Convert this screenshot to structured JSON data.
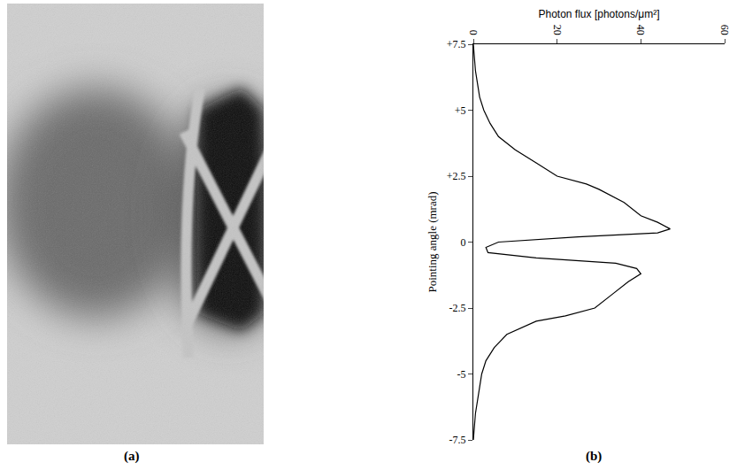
{
  "image_panel": {
    "label": "(a)"
  },
  "chart_data": {
    "type": "line",
    "panel_label": "(b)",
    "x_label": "Photon flux [photons/μm²]",
    "y_label": "Pointing angle (mrad)",
    "x": [
      0,
      0.5,
      1,
      1.5,
      2.5,
      4,
      6,
      10,
      15,
      20,
      27,
      30,
      36,
      40,
      44,
      47,
      44,
      25,
      6,
      3,
      3.5,
      15,
      34,
      39,
      40,
      37,
      33,
      29,
      22,
      15,
      8,
      5,
      3,
      2,
      1.5,
      1,
      0.5,
      0
    ],
    "y": [
      7.5,
      6.5,
      6,
      5.5,
      5,
      4.5,
      4,
      3.5,
      3,
      2.5,
      2.2,
      2,
      1.5,
      1,
      0.75,
      0.5,
      0.35,
      0.2,
      0,
      -0.2,
      -0.4,
      -0.6,
      -0.8,
      -1,
      -1.2,
      -1.5,
      -2,
      -2.5,
      -2.8,
      -3,
      -3.5,
      -4,
      -4.5,
      -5,
      -5.5,
      -6,
      -6.5,
      -7.5
    ],
    "color": "#000000",
    "xlim": [
      0,
      60
    ],
    "xticks": [
      0,
      20,
      40,
      60
    ],
    "ylim": [
      -7.5,
      7.5
    ],
    "yticks": [
      {
        "value": 7.5,
        "label": "+7.5"
      },
      {
        "value": 5,
        "label": "+5"
      },
      {
        "value": 2.5,
        "label": "+2.5"
      },
      0,
      -2.5,
      -5,
      -7.5
    ],
    "grid": false
  }
}
